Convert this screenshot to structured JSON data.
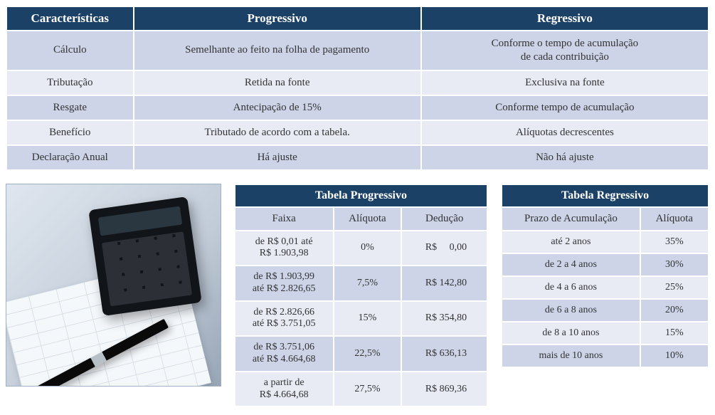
{
  "colors": {
    "header_bg": "#1c4166",
    "header_fg": "#ffffff",
    "row_dark": "#cdd4e8",
    "row_light": "#e8ebf4",
    "text": "#333333",
    "page_bg": "#ffffff"
  },
  "main_table": {
    "headers": [
      "Características",
      "Progressivo",
      "Regressivo"
    ],
    "rows": [
      {
        "c1": "Cálculo",
        "c2": "Semelhante ao feito na folha de pagamento",
        "c3_line1": "Conforme o tempo de acumulação",
        "c3_line2": "de cada contribuição"
      },
      {
        "c1": "Tributação",
        "c2": "Retida na fonte",
        "c3": "Exclusiva na fonte"
      },
      {
        "c1": "Resgate",
        "c2": "Antecipação de 15%",
        "c3": "Conforme tempo de acumulação"
      },
      {
        "c1": "Benefício",
        "c2": "Tributado de acordo com a tabela.",
        "c3": "Alíquotas decrescentes"
      },
      {
        "c1": "Declaração Anual",
        "c2": "Há ajuste",
        "c3": "Não há ajuste"
      }
    ]
  },
  "progressivo": {
    "title": "Tabela Progressivo",
    "cols": [
      "Faixa",
      "Alíquota",
      "Dedução"
    ],
    "rows": [
      {
        "faixa_l1": "de R$ 0,01 até",
        "faixa_l2": "R$ 1.903,98",
        "aliquota": "0%",
        "deducao": "R$     0,00"
      },
      {
        "faixa_l1": "de R$ 1.903,99",
        "faixa_l2": "até R$ 2.826,65",
        "aliquota": "7,5%",
        "deducao": "R$ 142,80"
      },
      {
        "faixa_l1": "de R$ 2.826,66",
        "faixa_l2": "até R$ 3.751,05",
        "aliquota": "15%",
        "deducao": "R$ 354,80"
      },
      {
        "faixa_l1": "de R$ 3.751,06",
        "faixa_l2": "até R$ 4.664,68",
        "aliquota": "22,5%",
        "deducao": "R$ 636,13"
      },
      {
        "faixa_l1": "a partir de",
        "faixa_l2": "R$ 4.664,68",
        "aliquota": "27,5%",
        "deducao": "R$ 869,36"
      }
    ]
  },
  "regressivo": {
    "title": "Tabela Regressivo",
    "cols": [
      "Prazo de Acumulação",
      "Alíquota"
    ],
    "rows": [
      {
        "prazo": "até 2 anos",
        "aliquota": "35%"
      },
      {
        "prazo": "de 2 a 4 anos",
        "aliquota": "30%"
      },
      {
        "prazo": "de 4 a 6 anos",
        "aliquota": "25%"
      },
      {
        "prazo": "de 6 a 8 anos",
        "aliquota": "20%"
      },
      {
        "prazo": "de 8 a 10 anos",
        "aliquota": "15%"
      },
      {
        "prazo": "mais de 10 anos",
        "aliquota": "10%"
      }
    ]
  },
  "photo": {
    "alt": "Calculadora e caneta sobre planilha financeira"
  }
}
